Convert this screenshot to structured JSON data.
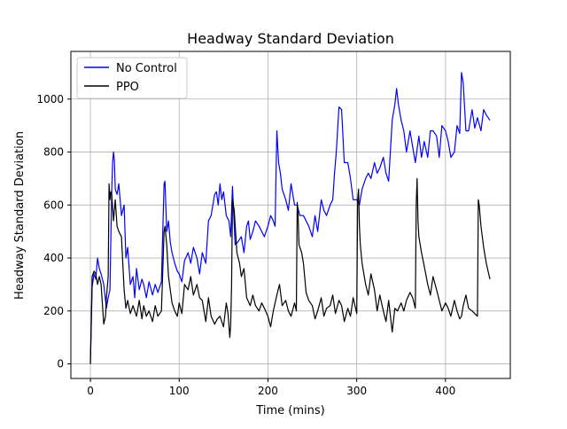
{
  "chart_data": {
    "type": "line",
    "title": "Headway Standard Deviation",
    "xlabel": "Time (mins)",
    "ylabel": "Headway Standard Deviation",
    "xlim": [
      -22,
      473
    ],
    "ylim": [
      -55,
      1180
    ],
    "xticks": [
      0,
      100,
      200,
      300,
      400
    ],
    "yticks": [
      0,
      200,
      400,
      600,
      800,
      1000
    ],
    "grid": true,
    "legend": "top-left",
    "series": [
      {
        "name": "No Control",
        "color": "#0000ff",
        "x": [
          0,
          2,
          4,
          6,
          8,
          10,
          12,
          15,
          18,
          20,
          22,
          24,
          25,
          26,
          27,
          28,
          30,
          32,
          35,
          38,
          40,
          42,
          45,
          48,
          50,
          52,
          55,
          58,
          60,
          63,
          66,
          70,
          73,
          76,
          80,
          83,
          84,
          86,
          88,
          90,
          92,
          95,
          98,
          100,
          103,
          106,
          110,
          113,
          116,
          120,
          123,
          126,
          130,
          133,
          136,
          140,
          142,
          144,
          146,
          148,
          150,
          153,
          156,
          158,
          160,
          163,
          166,
          170,
          173,
          176,
          178,
          180,
          183,
          186,
          190,
          193,
          196,
          200,
          203,
          206,
          208,
          210,
          212,
          214,
          216,
          220,
          223,
          226,
          230,
          233,
          236,
          240,
          243,
          246,
          250,
          253,
          256,
          260,
          263,
          266,
          270,
          273,
          275,
          277,
          280,
          283,
          286,
          290,
          293,
          296,
          300,
          303,
          306,
          310,
          313,
          316,
          320,
          323,
          326,
          330,
          333,
          336,
          340,
          343,
          345,
          347,
          350,
          353,
          356,
          360,
          363,
          366,
          370,
          373,
          376,
          380,
          383,
          386,
          390,
          393,
          396,
          400,
          403,
          406,
          410,
          413,
          416,
          418,
          420,
          423,
          426,
          430,
          433,
          436,
          440,
          443,
          446,
          450
        ],
        "y": [
          0,
          290,
          340,
          320,
          400,
          360,
          340,
          300,
          210,
          250,
          280,
          650,
          760,
          800,
          770,
          660,
          640,
          680,
          560,
          600,
          400,
          440,
          300,
          330,
          250,
          360,
          280,
          320,
          300,
          250,
          310,
          260,
          300,
          270,
          310,
          680,
          690,
          500,
          540,
          460,
          420,
          380,
          350,
          340,
          310,
          390,
          420,
          380,
          440,
          400,
          340,
          420,
          380,
          540,
          560,
          640,
          650,
          600,
          680,
          620,
          650,
          560,
          540,
          480,
          670,
          450,
          460,
          480,
          420,
          520,
          540,
          470,
          500,
          540,
          520,
          500,
          480,
          520,
          560,
          540,
          520,
          880,
          760,
          720,
          660,
          620,
          580,
          680,
          600,
          600,
          560,
          560,
          540,
          520,
          480,
          560,
          500,
          620,
          580,
          560,
          600,
          620,
          720,
          800,
          970,
          960,
          760,
          760,
          700,
          620,
          620,
          600,
          660,
          700,
          720,
          700,
          760,
          720,
          740,
          780,
          720,
          690,
          920,
          980,
          1040,
          980,
          920,
          880,
          800,
          880,
          820,
          760,
          860,
          780,
          840,
          780,
          880,
          880,
          860,
          780,
          900,
          880,
          840,
          780,
          800,
          900,
          870,
          1100,
          1060,
          880,
          880,
          960,
          890,
          930,
          880,
          960,
          940,
          920
        ]
      },
      {
        "name": "PPO",
        "color": "#000000",
        "x": [
          0,
          1,
          2,
          4,
          6,
          8,
          10,
          12,
          15,
          17,
          18,
          20,
          21,
          22,
          23,
          24,
          26,
          28,
          30,
          32,
          35,
          38,
          40,
          42,
          45,
          48,
          50,
          52,
          55,
          58,
          60,
          63,
          66,
          70,
          73,
          76,
          80,
          83,
          84,
          86,
          88,
          90,
          92,
          95,
          98,
          100,
          103,
          106,
          110,
          113,
          116,
          120,
          123,
          126,
          130,
          133,
          136,
          140,
          143,
          146,
          150,
          153,
          155,
          157,
          158,
          159,
          160,
          162,
          165,
          168,
          170,
          173,
          176,
          180,
          183,
          186,
          190,
          193,
          196,
          200,
          203,
          206,
          210,
          213,
          216,
          220,
          223,
          226,
          230,
          232,
          233,
          234,
          235,
          238,
          240,
          243,
          246,
          250,
          253,
          256,
          260,
          263,
          266,
          270,
          273,
          276,
          280,
          283,
          286,
          290,
          293,
          296,
          300,
          301,
          302,
          303,
          304,
          306,
          310,
          313,
          316,
          320,
          323,
          326,
          330,
          333,
          336,
          340,
          343,
          346,
          350,
          353,
          356,
          360,
          363,
          366,
          367,
          368,
          369,
          370,
          373,
          376,
          380,
          383,
          386,
          390,
          393,
          396,
          400,
          403,
          406,
          410,
          413,
          416,
          418,
          420,
          423,
          426,
          430,
          433,
          436,
          437,
          438,
          440,
          443,
          446,
          450
        ],
        "y": [
          0,
          150,
          330,
          350,
          340,
          300,
          330,
          300,
          150,
          180,
          250,
          330,
          680,
          620,
          650,
          640,
          540,
          620,
          520,
          500,
          480,
          280,
          210,
          240,
          190,
          220,
          200,
          180,
          240,
          170,
          220,
          180,
          200,
          160,
          220,
          180,
          200,
          500,
          520,
          450,
          330,
          280,
          230,
          200,
          180,
          230,
          190,
          300,
          280,
          330,
          260,
          300,
          250,
          240,
          160,
          250,
          180,
          150,
          170,
          180,
          140,
          230,
          190,
          100,
          150,
          300,
          620,
          580,
          420,
          380,
          330,
          360,
          250,
          220,
          260,
          220,
          200,
          230,
          210,
          180,
          140,
          200,
          260,
          300,
          220,
          240,
          200,
          180,
          230,
          200,
          610,
          560,
          450,
          420,
          380,
          270,
          240,
          220,
          170,
          200,
          250,
          180,
          210,
          220,
          260,
          190,
          240,
          220,
          160,
          210,
          180,
          250,
          190,
          620,
          660,
          520,
          450,
          380,
          300,
          260,
          340,
          280,
          200,
          260,
          200,
          160,
          240,
          120,
          210,
          200,
          230,
          200,
          240,
          270,
          250,
          210,
          600,
          700,
          540,
          480,
          420,
          370,
          300,
          260,
          330,
          280,
          240,
          200,
          230,
          210,
          180,
          240,
          200,
          170,
          180,
          220,
          260,
          210,
          200,
          190,
          180,
          620,
          600,
          520,
          440,
          380,
          320
        ]
      }
    ]
  }
}
